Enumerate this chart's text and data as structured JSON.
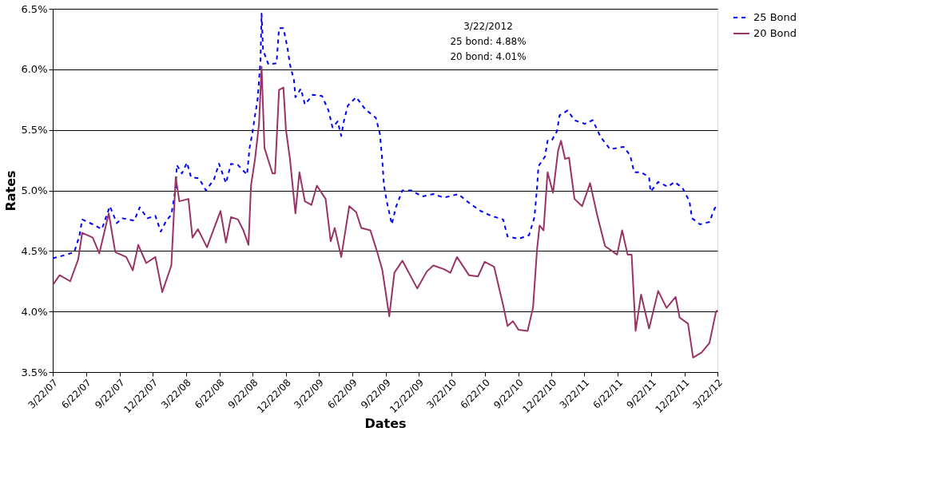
{
  "chart_data": {
    "type": "line",
    "xlabel": "Dates",
    "ylabel": "Rates",
    "annotations": [
      "3/22/2012",
      "25 bond: 4.88%",
      "20 bond: 4.01%"
    ],
    "xlim": [
      "2007-03-22",
      "2012-03-22"
    ],
    "xticks": [
      {
        "value": "2007-03-22",
        "label": "3/22/07"
      },
      {
        "value": "2007-06-22",
        "label": "6/22/07"
      },
      {
        "value": "2007-09-22",
        "label": "9/22/07"
      },
      {
        "value": "2007-12-22",
        "label": "12/22/07"
      },
      {
        "value": "2008-03-22",
        "label": "3/22/08"
      },
      {
        "value": "2008-06-22",
        "label": "6/22/08"
      },
      {
        "value": "2008-09-22",
        "label": "9/22/08"
      },
      {
        "value": "2008-12-22",
        "label": "12/22/08"
      },
      {
        "value": "2009-03-22",
        "label": "3/22/09"
      },
      {
        "value": "2009-06-22",
        "label": "6/22/09"
      },
      {
        "value": "2009-09-22",
        "label": "9/22/09"
      },
      {
        "value": "2009-12-22",
        "label": "12/22/09"
      },
      {
        "value": "2010-03-22",
        "label": "3/22/10"
      },
      {
        "value": "2010-06-22",
        "label": "6/22/10"
      },
      {
        "value": "2010-09-22",
        "label": "9/22/10"
      },
      {
        "value": "2010-12-22",
        "label": "12/22/10"
      },
      {
        "value": "2011-03-22",
        "label": "3/22/11"
      },
      {
        "value": "2011-06-22",
        "label": "6/22/11"
      },
      {
        "value": "2011-09-22",
        "label": "9/22/11"
      },
      {
        "value": "2011-12-22",
        "label": "12/22/11"
      },
      {
        "value": "2012-03-22",
        "label": "3/22/12"
      }
    ],
    "ylim": [
      3.5,
      6.5
    ],
    "yticks": [
      {
        "value": 3.5,
        "label": "3.5%"
      },
      {
        "value": 4.0,
        "label": "4.0%"
      },
      {
        "value": 4.5,
        "label": "4.5%"
      },
      {
        "value": 5.0,
        "label": "5.0%"
      },
      {
        "value": 5.5,
        "label": "5.5%"
      },
      {
        "value": 6.0,
        "label": "6.0%"
      },
      {
        "value": 6.5,
        "label": "6.5%"
      }
    ],
    "grid": "y",
    "legend": "top right",
    "marker": "none",
    "series": [
      {
        "name": "25 Bond",
        "color": "#0000ff",
        "line_style": "dashed",
        "x": [
          "2007-03-22",
          "2007-04-17",
          "2007-05-20",
          "2007-06-03",
          "2007-06-11",
          "2007-07-10",
          "2007-08-04",
          "2007-08-26",
          "2007-09-14",
          "2007-09-29",
          "2007-11-01",
          "2007-11-16",
          "2007-12-07",
          "2007-12-29",
          "2008-01-13",
          "2008-01-28",
          "2008-02-11",
          "2008-02-23",
          "2008-02-26",
          "2008-03-11",
          "2008-03-25",
          "2008-04-05",
          "2008-04-27",
          "2008-05-16",
          "2008-06-07",
          "2008-06-21",
          "2008-07-10",
          "2008-07-24",
          "2008-08-12",
          "2008-09-06",
          "2008-09-13",
          "2008-09-21",
          "2008-09-28",
          "2008-10-05",
          "2008-10-13",
          "2008-10-16",
          "2008-10-20",
          "2008-11-04",
          "2008-11-26",
          "2008-12-03",
          "2008-12-15",
          "2008-12-26",
          "2009-01-02",
          "2009-01-13",
          "2009-01-17",
          "2009-02-01",
          "2009-02-12",
          "2009-03-06",
          "2009-03-31",
          "2009-04-18",
          "2009-04-29",
          "2009-05-13",
          "2009-05-23",
          "2009-05-30",
          "2009-06-10",
          "2009-07-03",
          "2009-07-28",
          "2009-08-26",
          "2009-09-06",
          "2009-09-13",
          "2009-09-17",
          "2009-09-25",
          "2009-10-09",
          "2009-10-20",
          "2009-11-07",
          "2009-12-02",
          "2009-12-31",
          "2010-01-31",
          "2010-03-01",
          "2010-04-10",
          "2010-05-12",
          "2010-06-10",
          "2010-07-09",
          "2010-08-11",
          "2010-08-23",
          "2010-09-22",
          "2010-10-21",
          "2010-11-05",
          "2010-11-12",
          "2010-11-16",
          "2010-12-04",
          "2010-12-11",
          "2010-12-22",
          "2011-01-06",
          "2011-01-13",
          "2011-02-04",
          "2011-02-23",
          "2011-03-23",
          "2011-04-14",
          "2011-05-06",
          "2011-06-01",
          "2011-07-08",
          "2011-07-26",
          "2011-08-06",
          "2011-08-25",
          "2011-09-16",
          "2011-09-20",
          "2011-10-11",
          "2011-11-07",
          "2011-11-25",
          "2011-12-17",
          "2012-01-05",
          "2012-01-12",
          "2012-02-03",
          "2012-02-29",
          "2012-03-14",
          "2012-03-22"
        ],
        "values": [
          4.44,
          4.46,
          4.49,
          4.62,
          4.76,
          4.72,
          4.68,
          4.87,
          4.73,
          4.77,
          4.75,
          4.86,
          4.77,
          4.79,
          4.66,
          4.75,
          4.8,
          5.02,
          5.21,
          5.14,
          5.23,
          5.11,
          5.1,
          5.0,
          5.09,
          5.22,
          5.06,
          5.22,
          5.21,
          5.13,
          5.35,
          5.48,
          5.62,
          5.75,
          6.07,
          6.46,
          6.16,
          6.04,
          6.05,
          6.34,
          6.34,
          6.18,
          6.04,
          5.91,
          5.77,
          5.84,
          5.71,
          5.79,
          5.78,
          5.66,
          5.52,
          5.57,
          5.45,
          5.57,
          5.7,
          5.77,
          5.67,
          5.6,
          5.47,
          5.24,
          5.05,
          4.91,
          4.72,
          4.86,
          5.0,
          5.0,
          4.95,
          4.97,
          4.94,
          4.97,
          4.89,
          4.83,
          4.79,
          4.76,
          4.62,
          4.6,
          4.63,
          4.78,
          5.02,
          5.2,
          5.28,
          5.41,
          5.41,
          5.49,
          5.62,
          5.66,
          5.58,
          5.55,
          5.58,
          5.44,
          5.34,
          5.36,
          5.29,
          5.15,
          5.15,
          5.11,
          4.99,
          5.07,
          5.03,
          5.07,
          5.02,
          4.91,
          4.77,
          4.72,
          4.74,
          4.85,
          4.88
        ]
      },
      {
        "name": "20 Bond",
        "color": "#993366",
        "line_style": "solid",
        "x": [
          "2007-03-22",
          "2007-04-10",
          "2007-05-09",
          "2007-05-31",
          "2007-06-11",
          "2007-07-10",
          "2007-07-28",
          "2007-08-23",
          "2007-09-10",
          "2007-10-10",
          "2007-10-28",
          "2007-11-12",
          "2007-12-04",
          "2007-12-29",
          "2008-01-17",
          "2008-02-11",
          "2008-02-23",
          "2008-03-04",
          "2008-03-29",
          "2008-04-09",
          "2008-04-24",
          "2008-05-19",
          "2008-05-30",
          "2008-06-25",
          "2008-07-10",
          "2008-07-24",
          "2008-08-12",
          "2008-08-27",
          "2008-09-10",
          "2008-09-17",
          "2008-09-28",
          "2008-10-09",
          "2008-10-16",
          "2008-10-24",
          "2008-11-15",
          "2008-11-22",
          "2008-12-03",
          "2008-12-15",
          "2008-12-22",
          "2009-01-02",
          "2009-01-17",
          "2009-01-28",
          "2009-02-12",
          "2009-03-02",
          "2009-03-17",
          "2009-04-10",
          "2009-04-24",
          "2009-05-05",
          "2009-05-23",
          "2009-06-14",
          "2009-07-03",
          "2009-07-17",
          "2009-08-11",
          "2009-08-30",
          "2009-09-13",
          "2009-10-02",
          "2009-10-16",
          "2009-11-07",
          "2009-12-18",
          "2010-01-13",
          "2010-01-31",
          "2010-03-01",
          "2010-03-19",
          "2010-04-06",
          "2010-05-09",
          "2010-06-03",
          "2010-06-21",
          "2010-07-17",
          "2010-08-11",
          "2010-08-23",
          "2010-09-07",
          "2010-09-22",
          "2010-10-17",
          "2010-11-01",
          "2010-11-12",
          "2010-11-19",
          "2010-11-30",
          "2010-12-11",
          "2010-12-26",
          "2011-01-09",
          "2011-01-17",
          "2011-01-28",
          "2011-02-08",
          "2011-02-23",
          "2011-03-16",
          "2011-04-07",
          "2011-04-26",
          "2011-05-18",
          "2011-06-20",
          "2011-07-04",
          "2011-07-19",
          "2011-07-30",
          "2011-08-10",
          "2011-08-25",
          "2011-09-16",
          "2011-10-11",
          "2011-11-03",
          "2011-11-28",
          "2011-12-09",
          "2012-01-01",
          "2012-01-15",
          "2012-02-07",
          "2012-02-29",
          "2012-03-18",
          "2012-03-22"
        ],
        "values": [
          4.22,
          4.3,
          4.25,
          4.43,
          4.65,
          4.61,
          4.48,
          4.81,
          4.49,
          4.45,
          4.34,
          4.55,
          4.4,
          4.45,
          4.16,
          4.38,
          5.11,
          4.91,
          4.93,
          4.61,
          4.68,
          4.53,
          4.62,
          4.83,
          4.57,
          4.78,
          4.76,
          4.67,
          4.55,
          5.04,
          5.26,
          5.55,
          6.02,
          5.35,
          5.14,
          5.14,
          5.83,
          5.85,
          5.5,
          5.26,
          4.81,
          5.15,
          4.91,
          4.88,
          5.04,
          4.93,
          4.58,
          4.69,
          4.45,
          4.87,
          4.82,
          4.69,
          4.67,
          4.49,
          4.34,
          3.96,
          4.32,
          4.42,
          4.19,
          4.33,
          4.38,
          4.35,
          4.32,
          4.45,
          4.3,
          4.29,
          4.41,
          4.37,
          4.05,
          3.88,
          3.92,
          3.85,
          3.84,
          4.03,
          4.51,
          4.71,
          4.67,
          5.15,
          4.98,
          5.33,
          5.41,
          5.26,
          5.27,
          4.93,
          4.87,
          5.06,
          4.8,
          4.54,
          4.47,
          4.67,
          4.47,
          4.47,
          3.84,
          4.14,
          3.86,
          4.17,
          4.03,
          4.12,
          3.95,
          3.9,
          3.62,
          3.66,
          3.74,
          4.0,
          4.01
        ]
      }
    ]
  }
}
